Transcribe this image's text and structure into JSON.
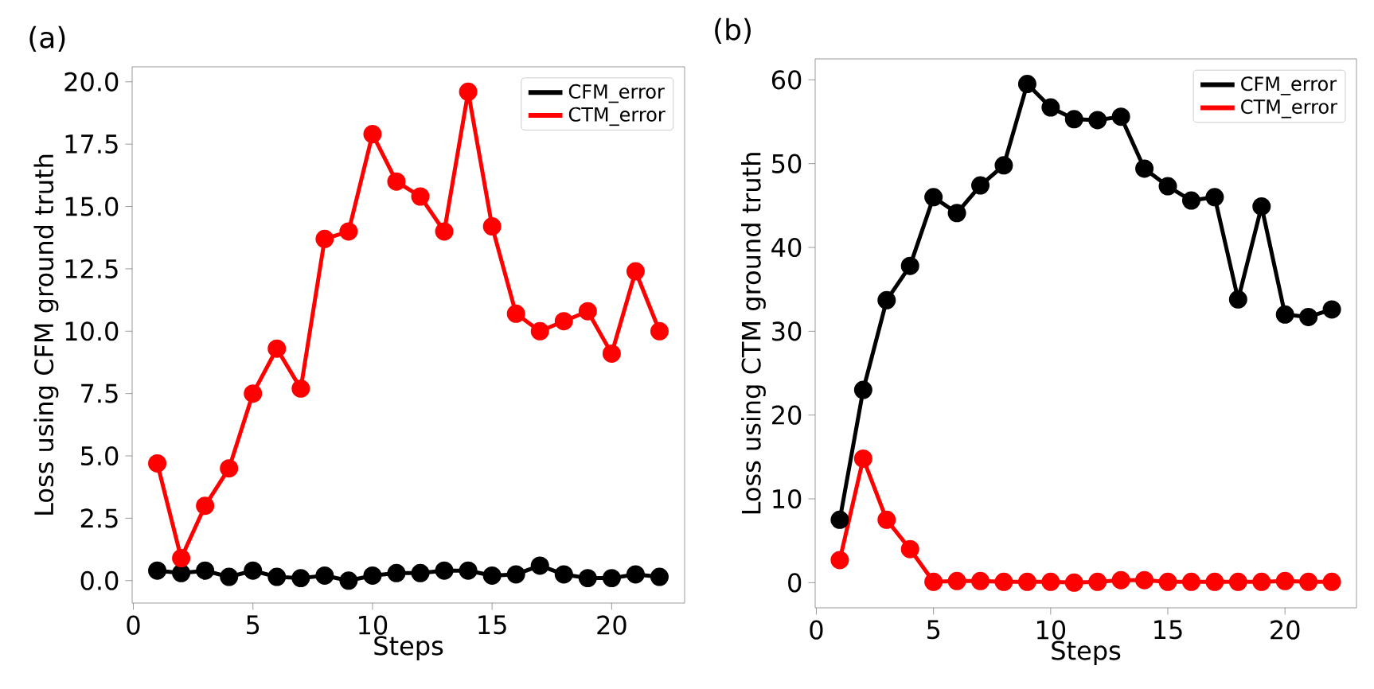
{
  "chart_data": [
    {
      "type": "line",
      "title": "(a)",
      "xlabel": "Steps",
      "ylabel": "Loss using CFM ground truth",
      "x": [
        1,
        2,
        3,
        4,
        5,
        6,
        7,
        8,
        9,
        10,
        11,
        12,
        13,
        14,
        15,
        16,
        17,
        18,
        19,
        20,
        21,
        22
      ],
      "series": [
        {
          "name": "CFM_error",
          "color": "#000000",
          "values": [
            0.4,
            0.3,
            0.4,
            0.15,
            0.4,
            0.15,
            0.1,
            0.2,
            0.0,
            0.2,
            0.3,
            0.3,
            0.4,
            0.4,
            0.2,
            0.25,
            0.6,
            0.25,
            0.1,
            0.1,
            0.25,
            0.15
          ]
        },
        {
          "name": "CTM_error",
          "color": "#ff0000",
          "values": [
            4.7,
            0.9,
            3.0,
            4.5,
            7.5,
            9.3,
            7.7,
            13.7,
            14.0,
            17.9,
            16.0,
            15.4,
            14.0,
            19.6,
            14.2,
            10.7,
            10.0,
            10.4,
            10.8,
            9.1,
            12.4,
            10.0
          ]
        }
      ],
      "xlim": [
        -0.05,
        23.05
      ],
      "ylim": [
        -0.9,
        20.6
      ],
      "xticks": [
        0,
        5,
        10,
        15,
        20
      ],
      "yticks": [
        {
          "value": 0,
          "label": "0.0"
        },
        {
          "value": 2.5,
          "label": "2.5"
        },
        {
          "value": 5,
          "label": "5.0"
        },
        {
          "value": 7.5,
          "label": "7.5"
        },
        {
          "value": 10,
          "label": "10.0"
        },
        {
          "value": 12.5,
          "label": "12.5"
        },
        {
          "value": 15,
          "label": "15.0"
        },
        {
          "value": 17.5,
          "label": "17.5"
        },
        {
          "value": 20,
          "label": "20.0"
        }
      ],
      "legend": "top right",
      "marker": "circle",
      "grid": false
    },
    {
      "type": "line",
      "title": "(b)",
      "xlabel": "Steps",
      "ylabel": "Loss using CTM ground truth",
      "x": [
        1,
        2,
        3,
        4,
        5,
        6,
        7,
        8,
        9,
        10,
        11,
        12,
        13,
        14,
        15,
        16,
        17,
        18,
        19,
        20,
        21,
        22
      ],
      "series": [
        {
          "name": "CFM_error",
          "color": "#000000",
          "values": [
            7.5,
            23,
            33.7,
            37.8,
            46,
            44.1,
            47.4,
            49.8,
            59.5,
            56.7,
            55.3,
            55.2,
            55.6,
            49.4,
            47.3,
            45.6,
            46,
            33.8,
            44.9,
            32,
            31.7,
            32.6
          ]
        },
        {
          "name": "CTM_error",
          "color": "#ff0000",
          "values": [
            2.7,
            14.8,
            7.5,
            4.0,
            0.1,
            0.2,
            0.2,
            0.1,
            0.1,
            0.1,
            0.0,
            0.1,
            0.3,
            0.3,
            0.1,
            0.1,
            0.1,
            0.1,
            0.1,
            0.2,
            0.1,
            0.1
          ]
        }
      ],
      "xlim": [
        -0.05,
        23.05
      ],
      "ylim": [
        -3,
        62.5
      ],
      "xticks": [
        0,
        5,
        10,
        15,
        20
      ],
      "yticks": [
        0,
        10,
        20,
        30,
        40,
        50,
        60
      ],
      "legend": "top right",
      "marker": "circle",
      "grid": false
    }
  ]
}
